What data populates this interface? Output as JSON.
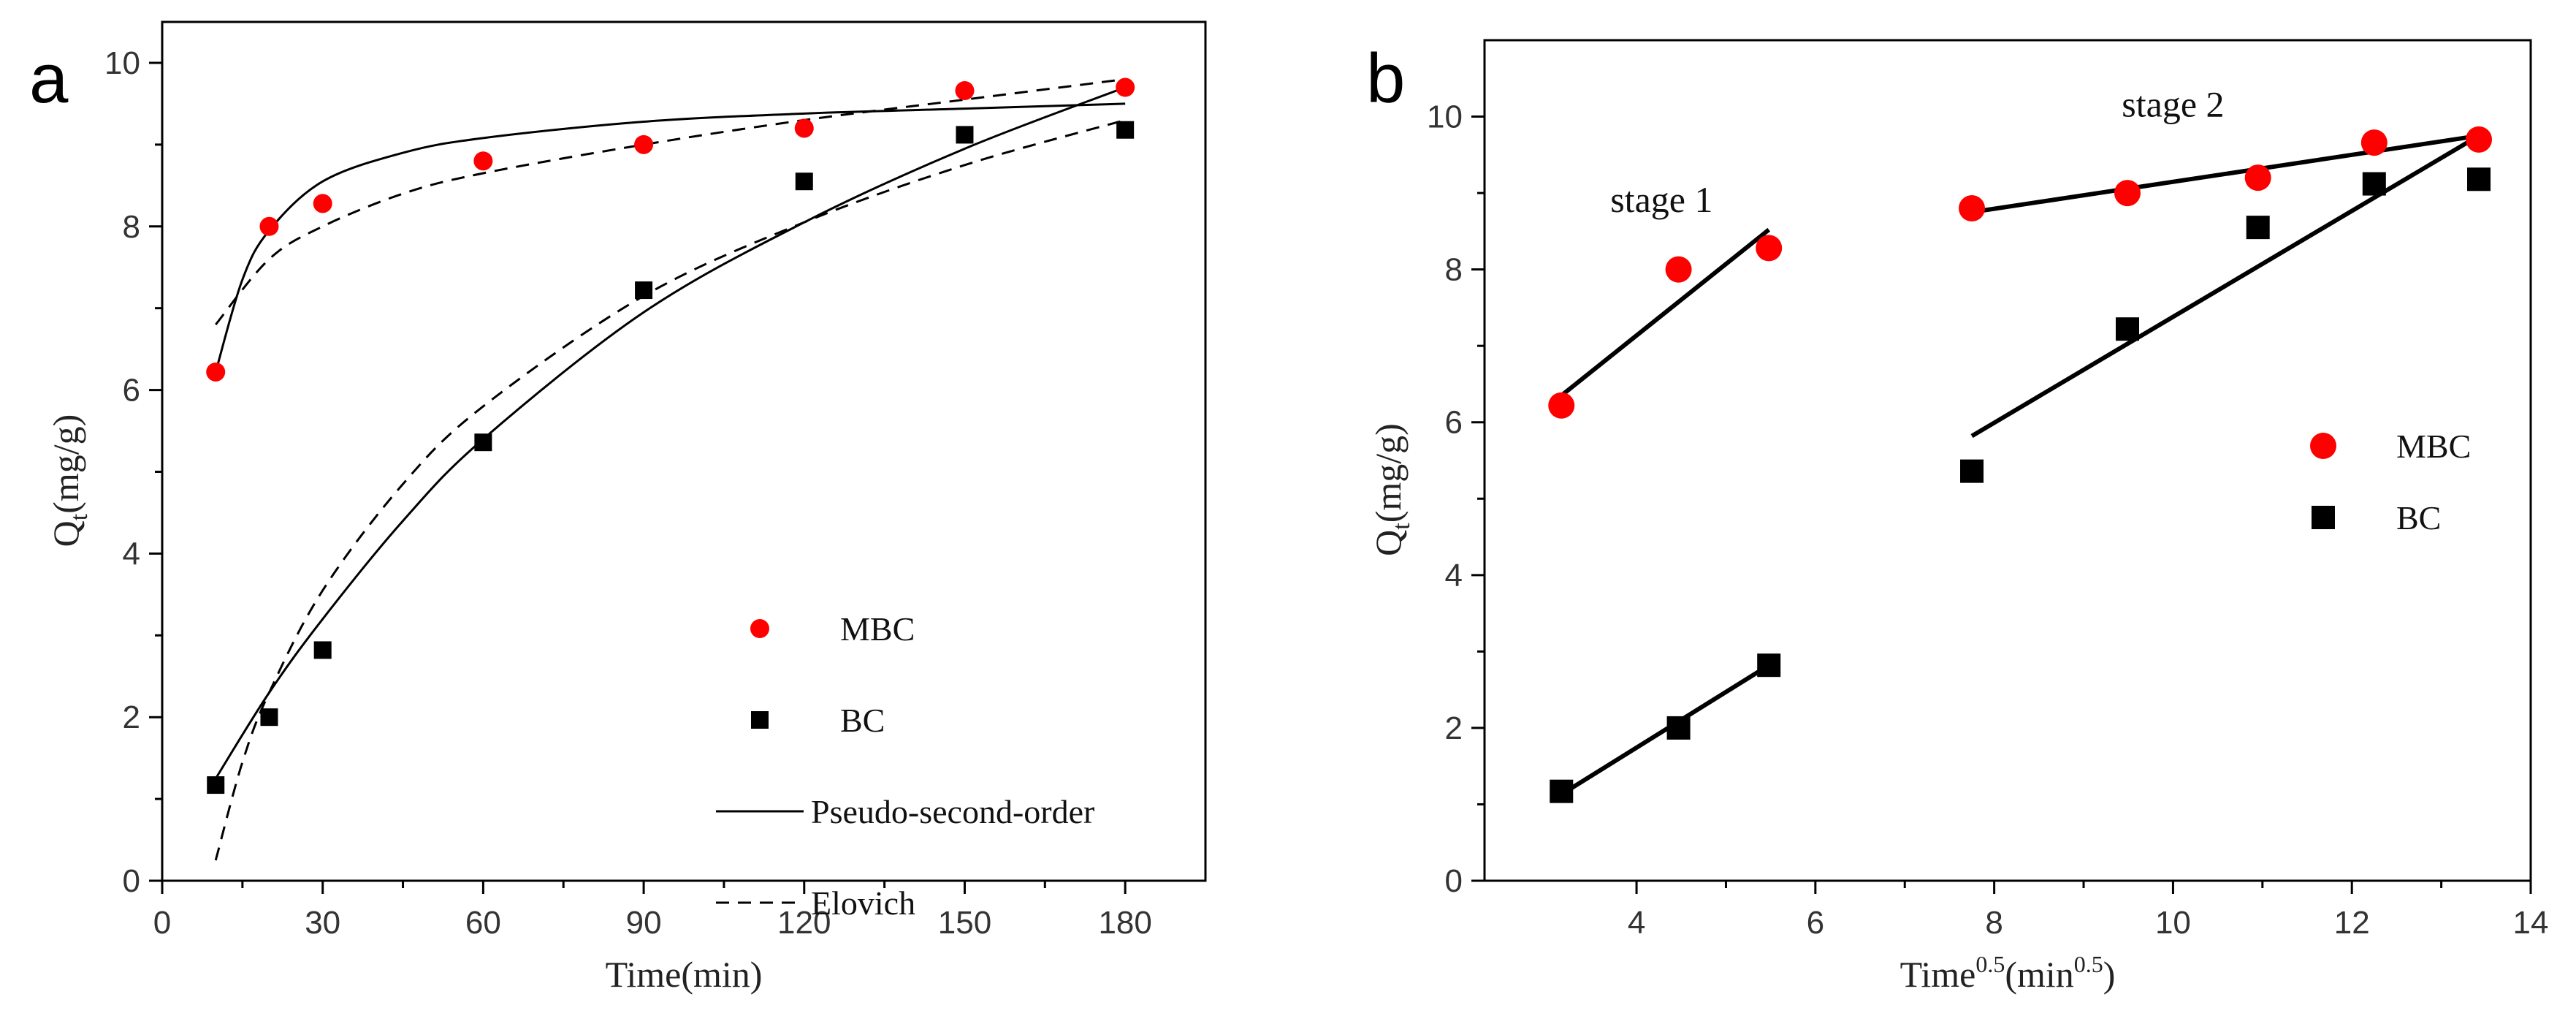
{
  "chart_data": [
    {
      "type": "scatter",
      "panel_label": "a",
      "xlabel": "Time(min)",
      "ylabel": {
        "main": "Q",
        "sub": "t",
        "rest": "(mg/g)"
      },
      "xlim": [
        0,
        195
      ],
      "ylim": [
        0,
        10.5
      ],
      "xticks": [
        0,
        30,
        60,
        90,
        120,
        150,
        180
      ],
      "yticks": [
        0,
        2,
        4,
        6,
        8,
        10
      ],
      "legend_position": "lower-right",
      "series": [
        {
          "name": "MBC",
          "marker": "circle",
          "color": "#ff0000",
          "x": [
            10,
            20,
            30,
            60,
            90,
            120,
            150,
            180
          ],
          "y": [
            6.22,
            8.0,
            8.28,
            8.8,
            9.0,
            9.2,
            9.66,
            9.7
          ]
        },
        {
          "name": "BC",
          "marker": "square",
          "color": "#000000",
          "x": [
            10,
            20,
            30,
            60,
            90,
            120,
            150,
            180
          ],
          "y": [
            1.17,
            2.0,
            2.82,
            5.36,
            7.22,
            8.55,
            9.12,
            9.18
          ]
        }
      ],
      "fits": [
        {
          "name": "Pseudo-second-order",
          "style": "solid",
          "applies_to": "MBC",
          "x": [
            10,
            15,
            20,
            30,
            45,
            60,
            90,
            120,
            150,
            180
          ],
          "y": [
            6.22,
            7.35,
            7.95,
            8.55,
            8.9,
            9.08,
            9.28,
            9.38,
            9.44,
            9.5
          ]
        },
        {
          "name": "Pseudo-second-order",
          "style": "solid",
          "applies_to": "BC",
          "x": [
            10,
            20,
            30,
            45,
            60,
            90,
            120,
            150,
            180
          ],
          "y": [
            1.25,
            2.3,
            3.2,
            4.4,
            5.4,
            6.95,
            8.05,
            8.95,
            9.7
          ]
        },
        {
          "name": "Elovich",
          "style": "dashed",
          "applies_to": "MBC",
          "x": [
            10,
            20,
            30,
            45,
            60,
            90,
            120,
            150,
            180
          ],
          "y": [
            6.8,
            7.6,
            8.0,
            8.4,
            8.65,
            9.0,
            9.3,
            9.55,
            9.8
          ]
        },
        {
          "name": "Elovich",
          "style": "dashed",
          "applies_to": "BC",
          "x": [
            10,
            15,
            20,
            30,
            45,
            60,
            90,
            120,
            150,
            180
          ],
          "y": [
            0.25,
            1.45,
            2.3,
            3.55,
            4.85,
            5.8,
            7.15,
            8.05,
            8.75,
            9.3
          ]
        }
      ],
      "legend": [
        {
          "label": "MBC",
          "kind": "circle",
          "color": "#ff0000"
        },
        {
          "label": "BC",
          "kind": "square",
          "color": "#000000"
        },
        {
          "label": "Pseudo-second-order",
          "kind": "solid",
          "color": "#000000"
        },
        {
          "label": "Elovich",
          "kind": "dashed",
          "color": "#000000"
        }
      ]
    },
    {
      "type": "scatter",
      "panel_label": "b",
      "xlabel": {
        "main": "Time",
        "sup": "0.5",
        "rest": "(min",
        "sup2": "0.5",
        "end": ")"
      },
      "ylabel": {
        "main": "Q",
        "sub": "t",
        "rest": "(mg/g)"
      },
      "xlim": [
        2.3,
        14
      ],
      "ylim": [
        0,
        11
      ],
      "xticks": [
        4,
        6,
        8,
        10,
        12,
        14
      ],
      "yticks": [
        0,
        2,
        4,
        6,
        8,
        10
      ],
      "legend_position": "right",
      "series": [
        {
          "name": "MBC",
          "marker": "circle",
          "color": "#ff0000",
          "x": [
            3.16,
            4.47,
            5.48,
            7.75,
            9.49,
            10.95,
            12.25,
            13.42
          ],
          "y": [
            6.22,
            8.0,
            8.28,
            8.8,
            9.0,
            9.2,
            9.66,
            9.7
          ]
        },
        {
          "name": "BC",
          "marker": "square",
          "color": "#000000",
          "x": [
            3.16,
            4.47,
            5.48,
            7.75,
            9.49,
            10.95,
            12.25,
            13.42
          ],
          "y": [
            1.17,
            2.0,
            2.82,
            5.36,
            7.22,
            8.55,
            9.12,
            9.18
          ]
        }
      ],
      "fits": [
        {
          "name": "MBC stage 1 fit",
          "style": "solid",
          "x": [
            3.16,
            5.48
          ],
          "y": [
            6.35,
            8.52
          ]
        },
        {
          "name": "BC stage 1 fit",
          "style": "solid",
          "x": [
            3.16,
            5.48
          ],
          "y": [
            1.13,
            2.82
          ]
        },
        {
          "name": "MBC stage 2 fit",
          "style": "solid",
          "x": [
            7.75,
            13.42
          ],
          "y": [
            8.75,
            9.75
          ]
        },
        {
          "name": "BC stage 2 fit",
          "style": "solid",
          "x": [
            7.75,
            13.42
          ],
          "y": [
            5.82,
            9.75
          ]
        }
      ],
      "annotations": [
        {
          "text": "stage 1",
          "x": 4.28,
          "y": 8.75
        },
        {
          "text": "stage 2",
          "x": 10.0,
          "y": 10.0
        }
      ],
      "legend": [
        {
          "label": "MBC",
          "kind": "circle",
          "color": "#ff0000"
        },
        {
          "label": "BC",
          "kind": "square",
          "color": "#000000"
        }
      ]
    }
  ]
}
